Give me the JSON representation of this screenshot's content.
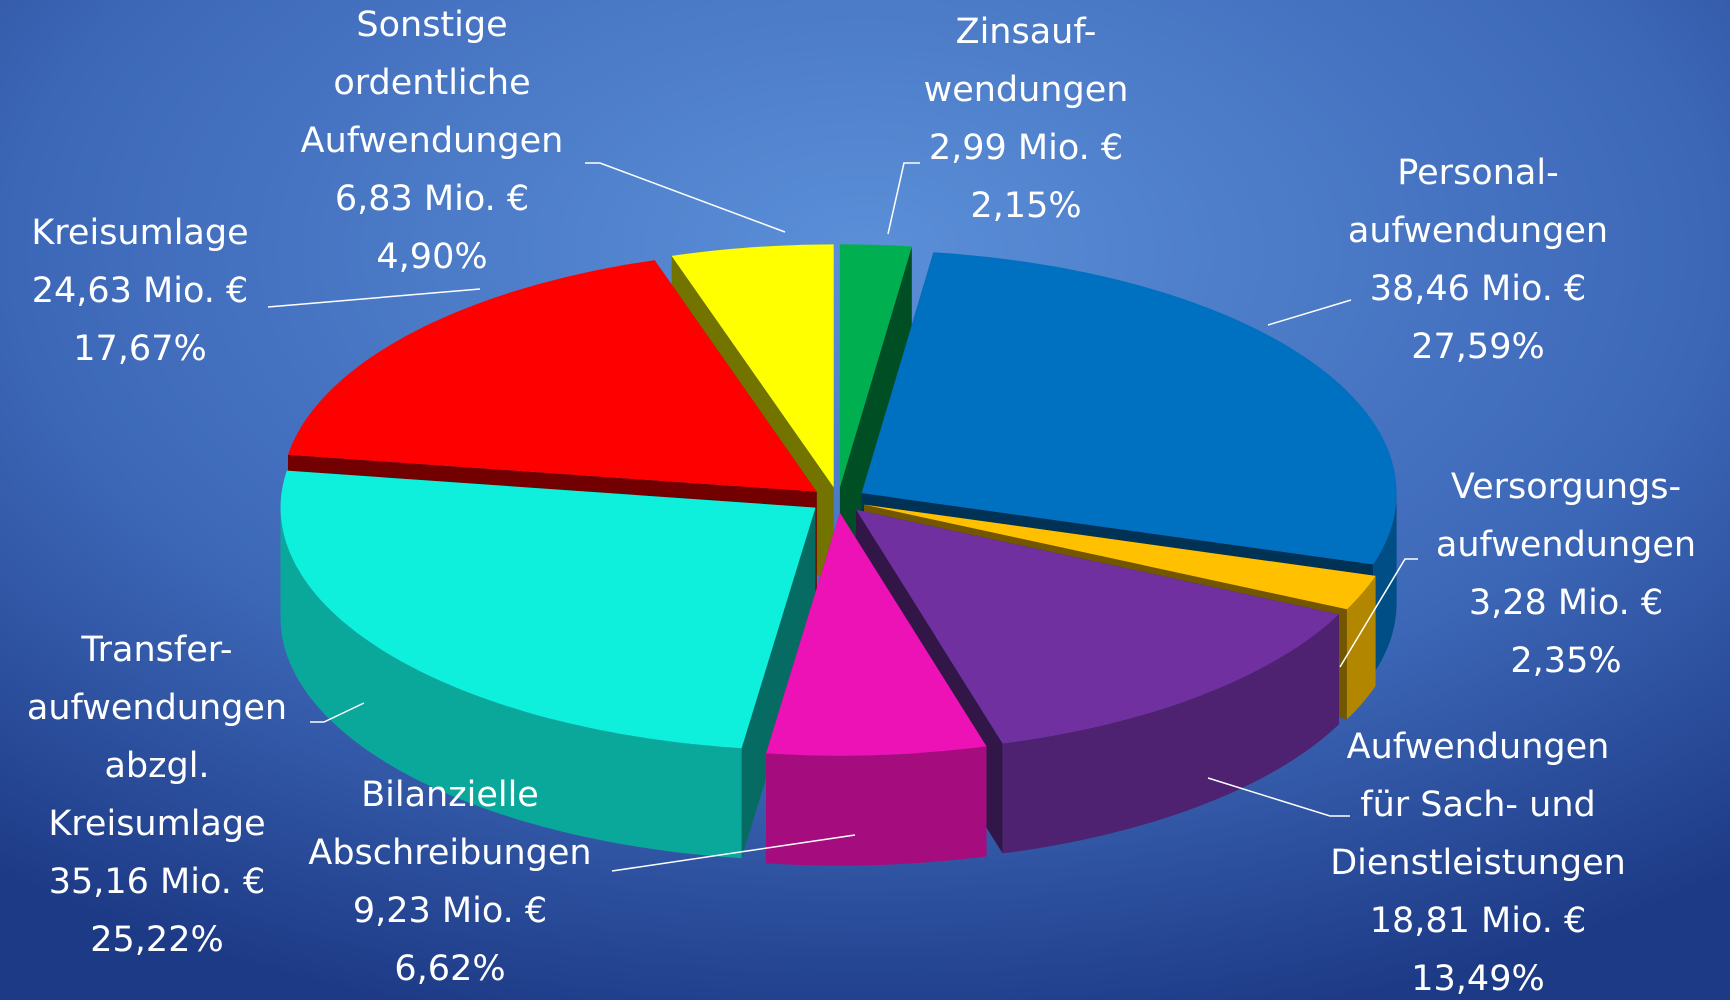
{
  "chart_data": {
    "type": "pie3d",
    "categories": [
      "Zinsauf-\nwendungen",
      "Personal-\naufwendungen",
      "Versorgungs-\naufwendungen",
      "Aufwendungen\nfür Sach- und\nDienstleistungen",
      "Bilanzielle\nAbschreibungen",
      "Transfer-\naufwendungen\nabzgl.\nKreisumlage",
      "Kreisumlage",
      "Sonstige\nordentliche\nAufwendungen"
    ],
    "values": [
      2.99,
      38.46,
      3.28,
      18.81,
      9.23,
      35.16,
      24.63,
      6.83
    ],
    "value_labels": [
      "2,99 Mio. €",
      "38,46 Mio. €",
      "3,28 Mio. €",
      "18,81 Mio. €",
      "9,23 Mio. €",
      "35,16 Mio. €",
      "24,63 Mio. €",
      "6,83 Mio. €"
    ],
    "percent_labels": [
      "2,15%",
      "27,59%",
      "2,35%",
      "13,49%",
      "6,62%",
      "25,22%",
      "17,67%",
      "4,90%"
    ],
    "colors": [
      "#00b050",
      "#0070c0",
      "#ffc000",
      "#7030a0",
      "#ec12b6",
      "#0ef0dc",
      "#ff0000",
      "#ffff00"
    ]
  }
}
